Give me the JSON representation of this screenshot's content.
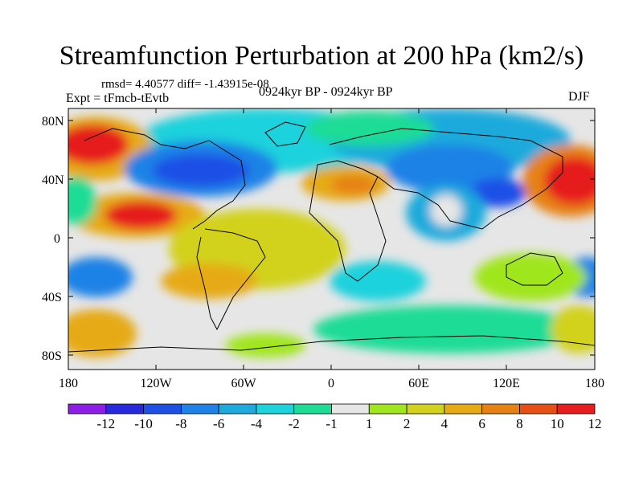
{
  "title": "Streamfunction Perturbation at 200 hPa (km2/s)",
  "stats": "rmsd= 4.40577 diff= -1.43915e-08",
  "experiment": "Expt = tFmcb-tEvtb",
  "period": "0924kyr BP - 0924kyr BP",
  "season": "DJF",
  "x_ticks": [
    "180",
    "120W",
    "60W",
    "0",
    "60E",
    "120E",
    "180"
  ],
  "y_ticks": [
    "80N",
    "40N",
    "0",
    "40S",
    "80S"
  ],
  "colorbar": {
    "labels": [
      "-12",
      "-10",
      "-8",
      "-6",
      "-4",
      "-2",
      "-1",
      "1",
      "2",
      "4",
      "6",
      "8",
      "10",
      "12"
    ],
    "colors": [
      "#8c1ee6",
      "#2828dc",
      "#1e50e6",
      "#1e82e6",
      "#1eaadc",
      "#1ed2dc",
      "#1edc96",
      "#e6e6e6",
      "#a0e61e",
      "#d2d21e",
      "#e6aa14",
      "#e68214",
      "#e65014",
      "#e61e1e"
    ]
  }
}
